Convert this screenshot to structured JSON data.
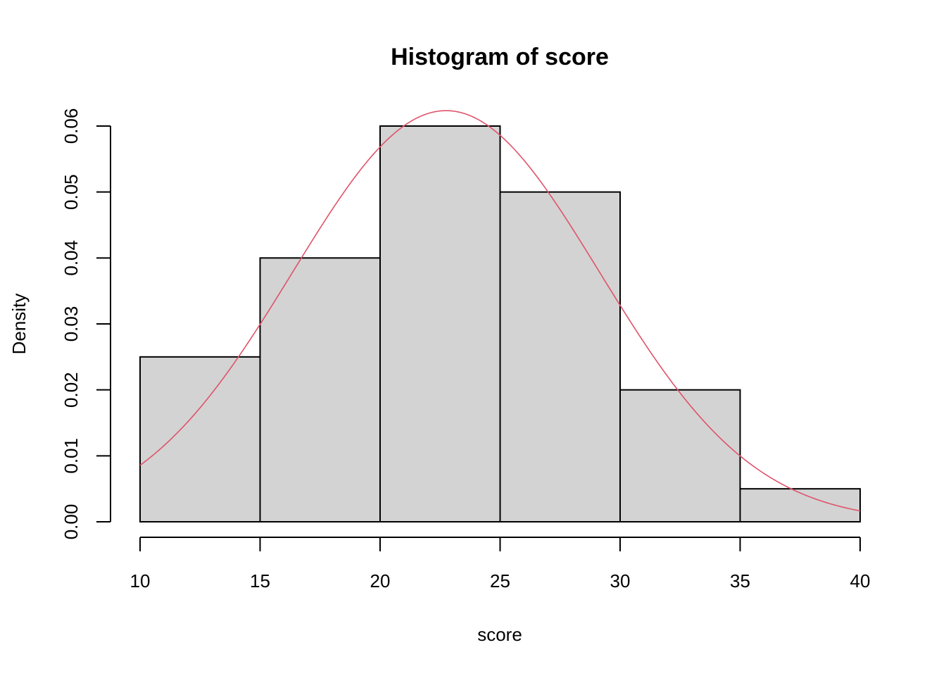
{
  "chart_data": {
    "type": "histogram",
    "title": "Histogram of score",
    "xlabel": "score",
    "ylabel": "Density",
    "bins": [
      {
        "start": 10,
        "end": 15,
        "density": 0.025
      },
      {
        "start": 15,
        "end": 20,
        "density": 0.04
      },
      {
        "start": 20,
        "end": 25,
        "density": 0.06
      },
      {
        "start": 25,
        "end": 30,
        "density": 0.05
      },
      {
        "start": 30,
        "end": 35,
        "density": 0.02
      },
      {
        "start": 35,
        "end": 40,
        "density": 0.005
      }
    ],
    "xlim": [
      10,
      40
    ],
    "ylim": [
      0,
      0.06
    ],
    "x_ticks": [
      10,
      15,
      20,
      25,
      30,
      35,
      40
    ],
    "x_tick_labels": [
      "10",
      "15",
      "20",
      "25",
      "30",
      "35",
      "40"
    ],
    "y_ticks": [
      0,
      0.01,
      0.02,
      0.03,
      0.04,
      0.05,
      0.06
    ],
    "y_tick_labels": [
      "0.00",
      "0.01",
      "0.02",
      "0.03",
      "0.04",
      "0.05",
      "0.06"
    ],
    "density_curve": {
      "type": "normal",
      "mean": 22.75,
      "sd": 6.4
    },
    "grid": false,
    "colors": {
      "bar_fill": "#d3d3d3",
      "bar_stroke": "#000000",
      "curve": "#df536b",
      "axis": "#000000"
    }
  }
}
